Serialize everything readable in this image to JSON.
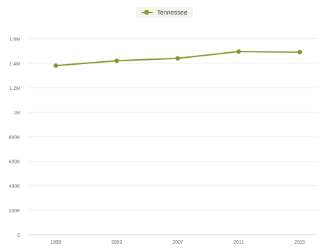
{
  "chart_data": {
    "type": "line",
    "title": "",
    "xlabel": "",
    "ylabel": "",
    "categories": [
      "1999",
      "2003",
      "2007",
      "2011",
      "2015"
    ],
    "series": [
      {
        "name": "Tennessee",
        "color": "#7f9a2a",
        "values": [
          1380000,
          1420000,
          1440000,
          1495000,
          1490000
        ]
      }
    ],
    "ylim": [
      0,
      1700000
    ],
    "yticks": [
      0,
      200000,
      400000,
      600000,
      800000,
      1000000,
      1200000,
      1400000,
      1600000
    ],
    "ytick_labels": [
      "0",
      "200K",
      "400K",
      "600K",
      "800K",
      "1M",
      "1.2M",
      "1.4M",
      "1.6M"
    ],
    "grid": true,
    "legend_position": "top-center"
  }
}
